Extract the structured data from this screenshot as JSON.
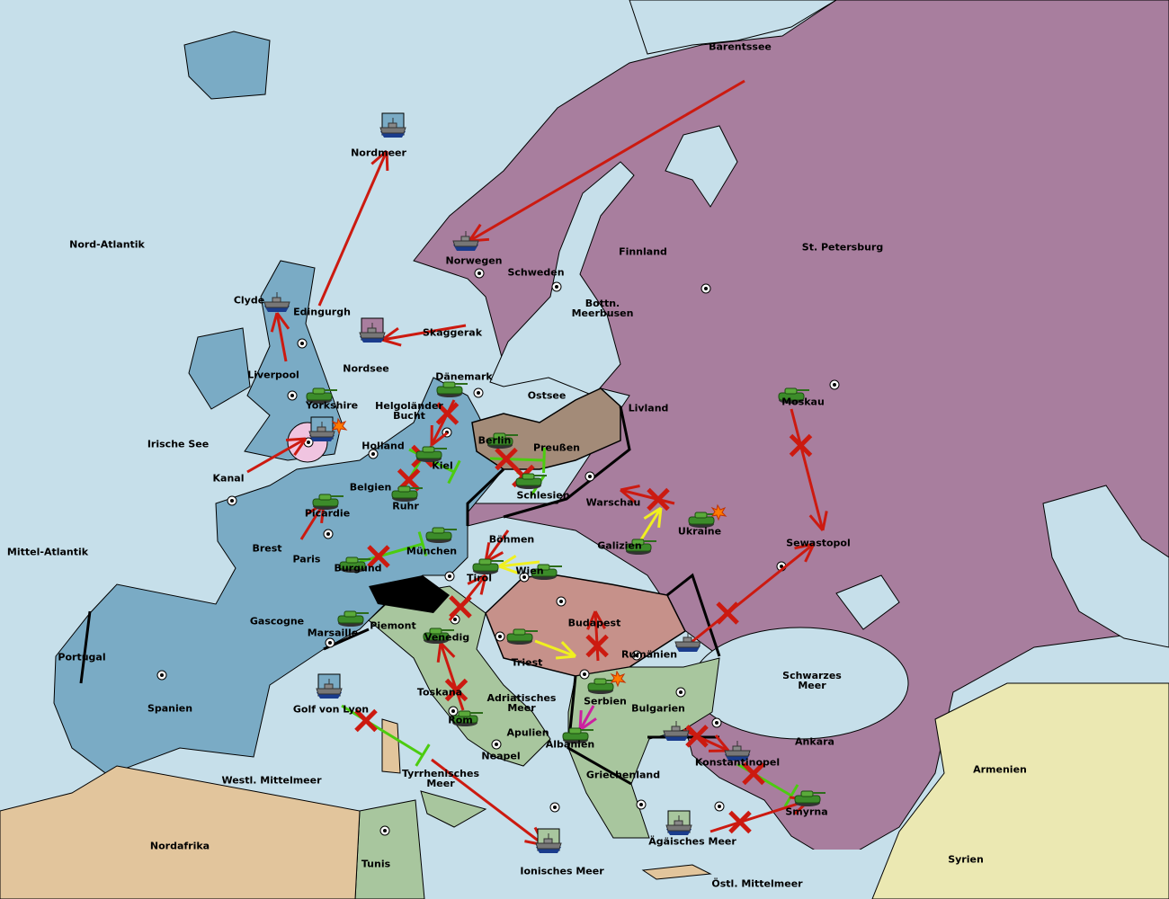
{
  "map": {
    "colors": {
      "sea": "#c6dfea",
      "england_france_germany": "#7aabc5",
      "russia_turkey": "#a87e9e",
      "austria": "#c6918a",
      "italy_balkans": "#a8c69e",
      "prussia": "#a38b78",
      "neutral_africa": "#e2c59c",
      "neutral_asia": "#ebe8b2",
      "switzerland": "#000000",
      "move_order": "#cc1a10",
      "support_order": "#4ccc10",
      "convoy_or_hold_support": "#f0f020",
      "retreat_order": "#cc20a0"
    },
    "provinces": [
      "Barentssee",
      "Nordmeer",
      "Nord-Atlantik",
      "Norwegen",
      "Schweden",
      "Finnland",
      "St. Petersburg",
      "Bottn.\nMeerbusen",
      "Clyde",
      "Edingurgh",
      "Skaggerak",
      "Nordsee",
      "Liverpool",
      "Dänemark",
      "Ostsee",
      "Livland",
      "Moskau",
      "Yorkshire",
      "Helgoländer\nBucht",
      "Irische See",
      "Holland",
      "Preußen",
      "Berlin",
      "Kiel",
      "Kanal",
      "Belgien",
      "Schlesien",
      "Warschau",
      "Ruhr",
      "Picardie",
      "Ukraine",
      "Sewastopol",
      "Böhmen",
      "Galizien",
      "Brest",
      "Mittel-Atlantik",
      "Paris",
      "München",
      "Burgund",
      "Wien",
      "Tirol",
      "Gascogne",
      "Budapest",
      "Piemont",
      "Marsaille",
      "Venedig",
      "Rumänien",
      "Portugal",
      "Triest",
      "Schwarzes\nMeer",
      "Toskana",
      "Adriatisches\nMeer",
      "Serbien",
      "Spanien",
      "Golf von Lyon",
      "Bulgarien",
      "Rom",
      "Apulien",
      "Ankara",
      "Albanien",
      "Neapel",
      "Konstantinopel",
      "Armenien",
      "Westl. Mittelmeer",
      "Griechenland",
      "Tyrrhenisches\nMeer",
      "Smyrna",
      "Nordafrika",
      "Ägäisches Meer",
      "Syrien",
      "Tunis",
      "Ionisches Meer",
      "Östl. Mittelmeer"
    ]
  },
  "units": [
    {
      "type": "army",
      "province": "Yorkshire"
    },
    {
      "type": "army",
      "province": "Dänemark"
    },
    {
      "type": "army",
      "province": "Kiel"
    },
    {
      "type": "army",
      "province": "Ruhr"
    },
    {
      "type": "army",
      "province": "Picardie"
    },
    {
      "type": "army",
      "province": "München"
    },
    {
      "type": "army",
      "province": "Burgund"
    },
    {
      "type": "army",
      "province": "Tirol"
    },
    {
      "type": "army",
      "province": "Berlin"
    },
    {
      "type": "army",
      "province": "Schlesien"
    },
    {
      "type": "army",
      "province": "Wien"
    },
    {
      "type": "army",
      "province": "Galizien"
    },
    {
      "type": "army",
      "province": "Ukraine",
      "dislodged": true
    },
    {
      "type": "army",
      "province": "Moskau"
    },
    {
      "type": "army",
      "province": "Marsaille"
    },
    {
      "type": "army",
      "province": "Venedig"
    },
    {
      "type": "army",
      "province": "Triest"
    },
    {
      "type": "army",
      "province": "Serbien",
      "dislodged": true
    },
    {
      "type": "army",
      "province": "Rom"
    },
    {
      "type": "army",
      "province": "Albanien"
    },
    {
      "type": "army",
      "province": "Smyrna"
    },
    {
      "type": "fleet",
      "province": "Nordmeer"
    },
    {
      "type": "fleet",
      "province": "Norwegen"
    },
    {
      "type": "fleet",
      "province": "Clyde"
    },
    {
      "type": "fleet",
      "province": "Skaggerak"
    },
    {
      "type": "fleet",
      "province": "Nordsee",
      "dislodged": true
    },
    {
      "type": "fleet",
      "province": "Golf von Lyon"
    },
    {
      "type": "fleet",
      "province": "Rumänien"
    },
    {
      "type": "fleet",
      "province": "Bulgarien"
    },
    {
      "type": "fleet",
      "province": "Konstantinopel"
    },
    {
      "type": "fleet",
      "province": "Ägäisches Meer"
    },
    {
      "type": "fleet",
      "province": "Ionisches Meer"
    }
  ],
  "orders": [
    {
      "kind": "move",
      "from": "Barentssee",
      "to": "Norwegen",
      "result": "success"
    },
    {
      "kind": "move",
      "from": "Edingurgh",
      "to": "Nordmeer",
      "result": "success"
    },
    {
      "kind": "move",
      "from": "Skaggerak",
      "to": "Nordsee",
      "result": "success"
    },
    {
      "kind": "move",
      "from": "Liverpool",
      "to": "Clyde",
      "result": "success"
    },
    {
      "kind": "move",
      "from": "Kanal",
      "to": "Nordsee",
      "result": "success"
    },
    {
      "kind": "move",
      "from": "Dänemark",
      "to": "Kiel",
      "result": "failed"
    },
    {
      "kind": "support",
      "from": "Ruhr",
      "to": "Kiel",
      "result": "failed"
    },
    {
      "kind": "support",
      "from": "Holland",
      "to": "Kiel",
      "result": "failed"
    },
    {
      "kind": "move",
      "from": "Paris",
      "to": "Picardie",
      "result": "success"
    },
    {
      "kind": "support",
      "from": "Burgund",
      "to": "München",
      "result": "failed"
    },
    {
      "kind": "support",
      "from": "Berlin",
      "to": "Schlesien",
      "result": "failed"
    },
    {
      "kind": "support",
      "from": "Schlesien",
      "to": "Preußen",
      "result": "failed"
    },
    {
      "kind": "move",
      "from": "Böhmen",
      "to": "Tirol",
      "result": "success"
    },
    {
      "kind": "move",
      "from": "Venedig",
      "to": "Tirol",
      "result": "failed"
    },
    {
      "kind": "convoy",
      "from": "Wien",
      "to": "Tirol",
      "result": "success"
    },
    {
      "kind": "move",
      "from": "Ukraine",
      "to": "Warschau",
      "result": "failed"
    },
    {
      "kind": "convoy",
      "from": "Galizien",
      "to": "Ukraine",
      "result": "success"
    },
    {
      "kind": "move",
      "from": "Moskau",
      "to": "Sewastopol",
      "result": "failed"
    },
    {
      "kind": "move",
      "from": "Rumänien",
      "to": "Sewastopol",
      "result": "failed"
    },
    {
      "kind": "convoy",
      "from": "Triest",
      "to": "Serbien",
      "result": "success"
    },
    {
      "kind": "move",
      "from": "Serbien",
      "to": "Budapest",
      "result": "failed"
    },
    {
      "kind": "retreat",
      "from": "Serbien",
      "to": "Albanien",
      "result": "success"
    },
    {
      "kind": "move",
      "from": "Rom",
      "to": "Venedig",
      "result": "failed"
    },
    {
      "kind": "support",
      "from": "Golf von Lyon",
      "to": "Tyrrhenisches Meer",
      "result": "failed"
    },
    {
      "kind": "move",
      "from": "Tyrrhenisches Meer",
      "to": "Ionisches Meer",
      "result": "success"
    },
    {
      "kind": "move",
      "from": "Bulgarien",
      "to": "Konstantinopel",
      "result": "failed"
    },
    {
      "kind": "support",
      "from": "Konstantinopel",
      "to": "Smyrna",
      "result": "failed"
    },
    {
      "kind": "move",
      "from": "Ägäisches Meer",
      "to": "Smyrna",
      "result": "failed"
    }
  ]
}
